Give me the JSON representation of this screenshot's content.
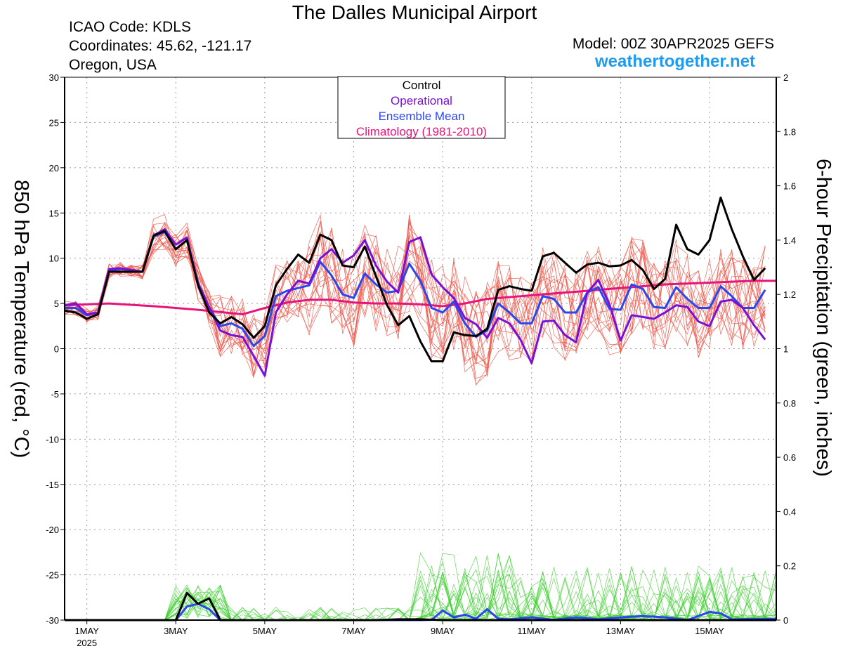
{
  "header": {
    "title": "The Dalles Municipal Airport",
    "icao": "ICAO Code: KDLS",
    "coords": "Coordinates: 45.62, -121.17",
    "region": "Oregon, USA",
    "model": "Model: 00Z 30APR2025 GEFS",
    "site": "weathertogether.net"
  },
  "colors": {
    "control": "#000000",
    "operational": "#7a10d6",
    "mean": "#2a46f0",
    "climatology": "#e8137a",
    "members_temp": "#f0584a",
    "members_precip": "#3ad02a",
    "site": "#1e9bec"
  },
  "chart_data": {
    "type": "line",
    "title": "The Dalles Municipal Airport",
    "ylabel_left": "850 hPa Temperature (red, °C)",
    "ylabel_right": "6-hour Precipitation (green, inches)",
    "ylim_left": [
      -30,
      30
    ],
    "ylim_right": [
      0,
      2
    ],
    "yticks_left": [
      30,
      25,
      20,
      15,
      10,
      5,
      0,
      -5,
      -10,
      -15,
      -20,
      -25,
      -30
    ],
    "yticks_right": [
      2,
      1.8,
      1.6,
      1.4,
      1.2,
      1,
      0.8,
      0.6,
      0.4,
      0.2,
      0
    ],
    "xlim_days": [
      -0.5,
      15.5
    ],
    "xticks": [
      {
        "day": 0,
        "label": "1MAY",
        "sub": "2025"
      },
      {
        "day": 2,
        "label": "3MAY",
        "sub": ""
      },
      {
        "day": 4,
        "label": "5MAY",
        "sub": ""
      },
      {
        "day": 6,
        "label": "7MAY",
        "sub": ""
      },
      {
        "day": 8,
        "label": "9MAY",
        "sub": ""
      },
      {
        "day": 10,
        "label": "11MAY",
        "sub": ""
      },
      {
        "day": 12,
        "label": "13MAY",
        "sub": ""
      },
      {
        "day": 14,
        "label": "15MAY",
        "sub": ""
      }
    ],
    "grid": true,
    "legend": {
      "position": "top-center",
      "entries": [
        {
          "label": "Control",
          "color": "#000000"
        },
        {
          "label": "Operational",
          "color": "#7a10d6"
        },
        {
          "label": "Ensemble Mean",
          "color": "#2a46f0"
        },
        {
          "label": "Climatology (1981-2010)",
          "color": "#e8137a"
        }
      ]
    },
    "temp_series": {
      "control": [
        [
          -0.5,
          4.2
        ],
        [
          -0.25,
          4.0
        ],
        [
          0,
          3.3
        ],
        [
          0.25,
          3.8
        ],
        [
          0.5,
          8.5
        ],
        [
          0.75,
          8.5
        ],
        [
          1,
          8.5
        ],
        [
          1.25,
          8.5
        ],
        [
          1.5,
          12.5
        ],
        [
          1.75,
          13.0
        ],
        [
          2,
          11.0
        ],
        [
          2.25,
          12.0
        ],
        [
          2.5,
          7.0
        ],
        [
          2.75,
          4.0
        ],
        [
          3,
          2.8
        ],
        [
          3.25,
          3.5
        ],
        [
          3.5,
          2.7
        ],
        [
          3.75,
          1.2
        ],
        [
          4,
          2.5
        ],
        [
          4.25,
          7.0
        ],
        [
          4.5,
          8.8
        ],
        [
          4.75,
          10.4
        ],
        [
          5,
          9.5
        ],
        [
          5.25,
          12.6
        ],
        [
          5.5,
          12.0
        ],
        [
          5.75,
          9.2
        ],
        [
          6,
          9.0
        ],
        [
          6.25,
          11.3
        ],
        [
          6.5,
          8.0
        ],
        [
          6.75,
          4.8
        ],
        [
          7,
          2.6
        ],
        [
          7.25,
          3.6
        ],
        [
          7.5,
          0.8
        ],
        [
          7.75,
          -1.4
        ],
        [
          8,
          -1.4
        ],
        [
          8.25,
          1.8
        ],
        [
          8.5,
          1.5
        ],
        [
          8.75,
          1.4
        ],
        [
          9,
          2.2
        ],
        [
          9.25,
          6.5
        ],
        [
          9.5,
          6.9
        ],
        [
          9.75,
          6.6
        ],
        [
          10,
          6.4
        ],
        [
          10.25,
          10.2
        ],
        [
          10.5,
          10.6
        ],
        [
          10.75,
          9.5
        ],
        [
          11,
          8.4
        ],
        [
          11.25,
          9.3
        ],
        [
          11.5,
          9.5
        ],
        [
          11.75,
          9.1
        ],
        [
          12,
          9.2
        ],
        [
          12.25,
          9.8
        ],
        [
          12.5,
          8.7
        ],
        [
          12.75,
          6.6
        ],
        [
          13,
          7.7
        ],
        [
          13.25,
          13.7
        ],
        [
          13.5,
          11.0
        ],
        [
          13.75,
          10.4
        ],
        [
          14,
          12.0
        ],
        [
          14.25,
          16.7
        ],
        [
          14.5,
          13.2
        ],
        [
          14.75,
          10.2
        ],
        [
          15,
          7.6
        ],
        [
          15.25,
          8.9
        ]
      ],
      "operational": [
        [
          -0.5,
          4.8
        ],
        [
          -0.25,
          5.0
        ],
        [
          0,
          3.8
        ],
        [
          0.25,
          4.0
        ],
        [
          0.5,
          8.8
        ],
        [
          0.75,
          8.9
        ],
        [
          1,
          8.7
        ],
        [
          1.25,
          8.5
        ],
        [
          1.5,
          12.5
        ],
        [
          1.75,
          13.2
        ],
        [
          2,
          11.5
        ],
        [
          2.25,
          12.3
        ],
        [
          2.5,
          7.2
        ],
        [
          2.75,
          4.6
        ],
        [
          3,
          2.0
        ],
        [
          3.25,
          1.5
        ],
        [
          3.5,
          1.3
        ],
        [
          3.75,
          -0.8
        ],
        [
          4,
          -3.0
        ],
        [
          4.25,
          4.0
        ],
        [
          4.5,
          6.0
        ],
        [
          4.75,
          7.5
        ],
        [
          5,
          7.2
        ],
        [
          5.25,
          10.0
        ],
        [
          5.5,
          11.0
        ],
        [
          5.75,
          9.5
        ],
        [
          6,
          10.3
        ],
        [
          6.25,
          12.0
        ],
        [
          6.5,
          9.2
        ],
        [
          6.75,
          7.4
        ],
        [
          7,
          6.2
        ],
        [
          7.25,
          11.8
        ],
        [
          7.5,
          12.3
        ],
        [
          7.75,
          8.2
        ],
        [
          8,
          6.8
        ],
        [
          8.25,
          5.6
        ],
        [
          8.5,
          3.4
        ],
        [
          8.75,
          2.7
        ],
        [
          9,
          1.2
        ],
        [
          9.25,
          3.4
        ],
        [
          9.5,
          2.8
        ],
        [
          9.75,
          1.0
        ],
        [
          10,
          -1.6
        ],
        [
          10.25,
          3.0
        ],
        [
          10.5,
          3.1
        ],
        [
          10.75,
          1.5
        ],
        [
          11,
          0.7
        ],
        [
          11.25,
          6.2
        ],
        [
          11.5,
          7.6
        ],
        [
          11.75,
          4.9
        ],
        [
          12,
          0.9
        ],
        [
          12.25,
          3.7
        ],
        [
          12.5,
          3.5
        ],
        [
          12.75,
          3.3
        ],
        [
          13,
          4.0
        ],
        [
          13.25,
          4.8
        ],
        [
          13.5,
          4.6
        ],
        [
          13.75,
          3.0
        ],
        [
          14,
          2.5
        ],
        [
          14.25,
          5.2
        ],
        [
          14.5,
          5.4
        ],
        [
          14.75,
          4.5
        ],
        [
          15,
          2.6
        ],
        [
          15.25,
          1.0
        ]
      ],
      "mean": [
        [
          -0.5,
          4.5
        ],
        [
          -0.25,
          4.5
        ],
        [
          0,
          3.7
        ],
        [
          0.25,
          4.0
        ],
        [
          0.5,
          8.6
        ],
        [
          0.75,
          8.8
        ],
        [
          1,
          8.7
        ],
        [
          1.25,
          8.5
        ],
        [
          1.5,
          12.4
        ],
        [
          1.75,
          12.9
        ],
        [
          2,
          11.0
        ],
        [
          2.25,
          12.0
        ],
        [
          2.5,
          7.3
        ],
        [
          2.75,
          4.6
        ],
        [
          3,
          2.5
        ],
        [
          3.25,
          2.8
        ],
        [
          3.5,
          2.2
        ],
        [
          3.75,
          0.3
        ],
        [
          4,
          1.4
        ],
        [
          4.25,
          5.8
        ],
        [
          4.5,
          6.4
        ],
        [
          4.75,
          6.7
        ],
        [
          5,
          7.0
        ],
        [
          5.25,
          9.6
        ],
        [
          5.5,
          8.1
        ],
        [
          5.75,
          6.0
        ],
        [
          6,
          5.6
        ],
        [
          6.25,
          8.3
        ],
        [
          6.5,
          7.1
        ],
        [
          6.75,
          6.2
        ],
        [
          7,
          6.4
        ],
        [
          7.25,
          9.4
        ],
        [
          7.5,
          7.5
        ],
        [
          7.75,
          4.5
        ],
        [
          8,
          4.0
        ],
        [
          8.25,
          5.2
        ],
        [
          8.5,
          2.8
        ],
        [
          8.75,
          1.3
        ],
        [
          9,
          2.0
        ],
        [
          9.25,
          5.0
        ],
        [
          9.5,
          4.0
        ],
        [
          9.75,
          2.8
        ],
        [
          10,
          2.8
        ],
        [
          10.25,
          5.8
        ],
        [
          10.5,
          5.5
        ],
        [
          10.75,
          4.0
        ],
        [
          11,
          4.0
        ],
        [
          11.25,
          6.2
        ],
        [
          11.5,
          6.8
        ],
        [
          11.75,
          4.4
        ],
        [
          12,
          4.3
        ],
        [
          12.25,
          7.1
        ],
        [
          12.5,
          6.6
        ],
        [
          12.75,
          4.6
        ],
        [
          13,
          4.5
        ],
        [
          13.25,
          6.8
        ],
        [
          13.5,
          5.5
        ],
        [
          13.75,
          4.5
        ],
        [
          14,
          4.5
        ],
        [
          14.25,
          6.9
        ],
        [
          14.5,
          5.8
        ],
        [
          14.75,
          4.5
        ],
        [
          15,
          4.5
        ],
        [
          15.25,
          6.5
        ]
      ],
      "climatology": [
        [
          -0.5,
          4.8
        ],
        [
          0.5,
          5.0
        ],
        [
          1.5,
          4.7
        ],
        [
          2.5,
          4.3
        ],
        [
          3.5,
          3.8
        ],
        [
          4,
          4.5
        ],
        [
          4.5,
          5.1
        ],
        [
          5,
          5.4
        ],
        [
          5.5,
          5.4
        ],
        [
          6,
          5.1
        ],
        [
          6.5,
          5.0
        ],
        [
          7,
          5.0
        ],
        [
          7.5,
          4.9
        ],
        [
          8,
          4.7
        ],
        [
          8.5,
          5.0
        ],
        [
          9,
          5.5
        ],
        [
          9.5,
          5.7
        ],
        [
          10,
          5.9
        ],
        [
          10.5,
          6.1
        ],
        [
          11,
          6.3
        ],
        [
          11.5,
          6.5
        ],
        [
          12,
          6.7
        ],
        [
          12.5,
          6.9
        ],
        [
          13,
          7.1
        ],
        [
          13.5,
          7.2
        ],
        [
          14,
          7.3
        ],
        [
          14.5,
          7.4
        ],
        [
          15,
          7.5
        ],
        [
          15.5,
          7.5
        ]
      ]
    },
    "precip_series": {
      "control": [
        [
          -0.5,
          0
        ],
        [
          1.75,
          0
        ],
        [
          2.0,
          0
        ],
        [
          2.25,
          0.1
        ],
        [
          2.5,
          0.06
        ],
        [
          2.75,
          0.08
        ],
        [
          3,
          0
        ],
        [
          6.5,
          0
        ],
        [
          7,
          0.003
        ],
        [
          7.5,
          0.003
        ],
        [
          8,
          0
        ],
        [
          15.5,
          0
        ]
      ],
      "mean": [
        [
          -0.5,
          0
        ],
        [
          2.0,
          0
        ],
        [
          2.25,
          0.05
        ],
        [
          2.5,
          0.06
        ],
        [
          2.75,
          0.04
        ],
        [
          3,
          0
        ],
        [
          7.5,
          0
        ],
        [
          7.75,
          0.001
        ],
        [
          8.0,
          0.035
        ],
        [
          8.25,
          0.01
        ],
        [
          8.5,
          0.02
        ],
        [
          8.75,
          0.005
        ],
        [
          9.0,
          0.04
        ],
        [
          9.25,
          0.005
        ],
        [
          9.5,
          0.003
        ],
        [
          10.0,
          0.01
        ],
        [
          10.5,
          0.001
        ],
        [
          11,
          0.01
        ],
        [
          11.5,
          0.003
        ],
        [
          12,
          0.01
        ],
        [
          12.5,
          0.015
        ],
        [
          13,
          0.01
        ],
        [
          13.5,
          0.0
        ],
        [
          14,
          0.03
        ],
        [
          14.25,
          0.025
        ],
        [
          14.5,
          0.003
        ],
        [
          15.5,
          0.005
        ]
      ]
    },
    "members_note": "plus thin red temperature and thin green precipitation lines for each ensemble member"
  },
  "labels": {
    "ylabel_left": "850 hPa Temperature (red, °C)",
    "ylabel_right": "6-hour Precipitation (green, inches)"
  }
}
